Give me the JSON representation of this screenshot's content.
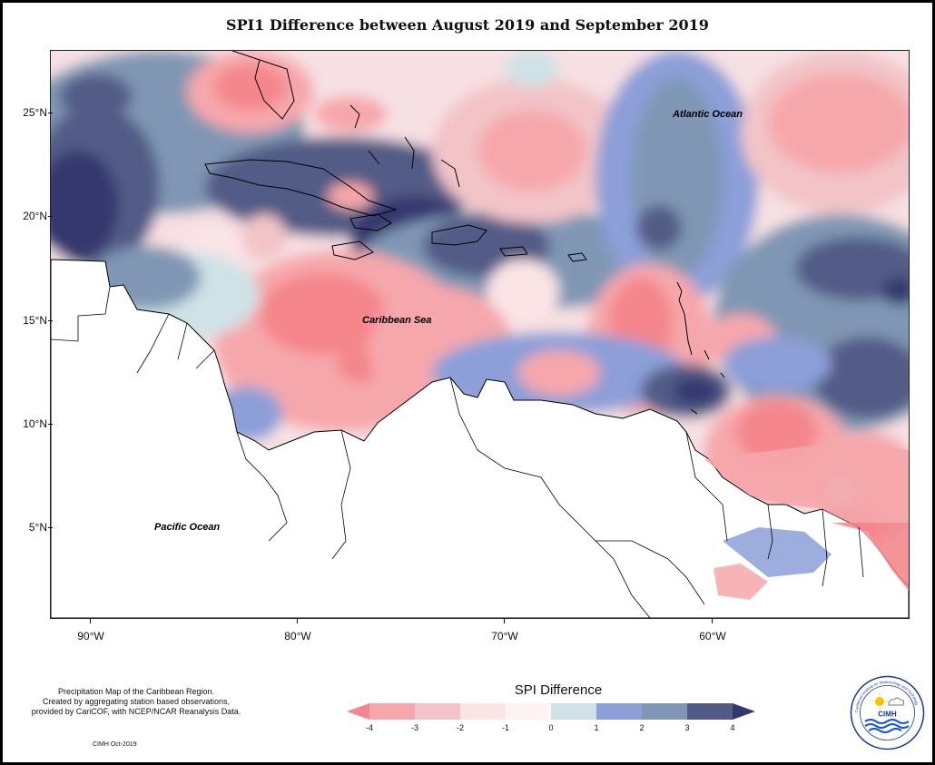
{
  "title": "SPI1 Difference between August 2019 and September 2019",
  "map": {
    "ocean_labels": {
      "atlantic": "Atlantic Ocean",
      "caribbean": "Caribbean Sea",
      "pacific": "Pacific Ocean"
    },
    "lat_ticks": [
      "25°N",
      "20°N",
      "15°N",
      "10°N",
      "5°N"
    ],
    "lon_ticks": [
      "90°W",
      "80°W",
      "70°W",
      "60°W"
    ]
  },
  "legend": {
    "title": "SPI Difference",
    "tick_labels": [
      "-4",
      "-3",
      "-2",
      "-1",
      "0",
      "1",
      "2",
      "3",
      "4"
    ],
    "colors": [
      "#f4868c",
      "#f6a7ab",
      "#f2c4c8",
      "#fbe4e6",
      "#fff4f4",
      "#cfe2e6",
      "#8c9fd8",
      "#7f97b4",
      "#525b86",
      "#34376e"
    ]
  },
  "notes": {
    "line1": "Precipitation Map of the Caribbean Region.",
    "line2": "Created by aggregating station based observations,",
    "line3": "provided by CariCOF, with NCEP/NCAR Reanalysis Data.",
    "credit": "CIMH Oct-2019"
  },
  "logo": {
    "text": "CIMH",
    "ring_text": "Caribbean Institute for Meteorology and Hydrology"
  }
}
